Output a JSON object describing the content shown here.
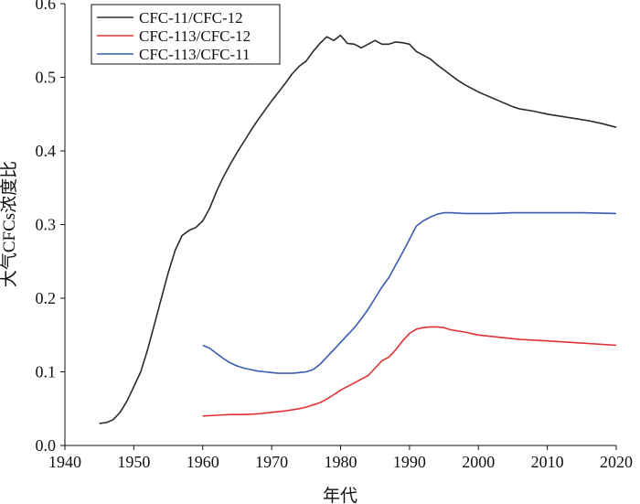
{
  "chart_data": {
    "type": "line",
    "title": "",
    "xlabel": "年代",
    "ylabel": "大气CFCs浓度比",
    "xlim": [
      1940,
      2020
    ],
    "ylim": [
      0,
      0.6
    ],
    "xticks": [
      1940,
      1950,
      1960,
      1970,
      1980,
      1990,
      2000,
      2010,
      2020
    ],
    "yticks": [
      0.0,
      0.1,
      0.2,
      0.3,
      0.4,
      0.5,
      0.6
    ],
    "xtick_labels": [
      "1940",
      "1950",
      "1960",
      "1970",
      "1980",
      "1990",
      "2000",
      "2010",
      "2020"
    ],
    "ytick_labels": [
      "0.0",
      "0.1",
      "0.2",
      "0.3",
      "0.4",
      "0.5",
      "0.6"
    ],
    "grid": false,
    "legend_position": "top-left",
    "series": [
      {
        "name": "CFC-11/CFC-12",
        "color": "#2b2b2b",
        "points": [
          [
            1945,
            0.03
          ],
          [
            1946,
            0.031
          ],
          [
            1947,
            0.035
          ],
          [
            1948,
            0.045
          ],
          [
            1949,
            0.06
          ],
          [
            1950,
            0.08
          ],
          [
            1951,
            0.1
          ],
          [
            1952,
            0.13
          ],
          [
            1953,
            0.165
          ],
          [
            1954,
            0.2
          ],
          [
            1955,
            0.235
          ],
          [
            1956,
            0.265
          ],
          [
            1957,
            0.285
          ],
          [
            1958,
            0.292
          ],
          [
            1959,
            0.296
          ],
          [
            1960,
            0.305
          ],
          [
            1961,
            0.322
          ],
          [
            1962,
            0.345
          ],
          [
            1963,
            0.365
          ],
          [
            1964,
            0.382
          ],
          [
            1965,
            0.398
          ],
          [
            1966,
            0.413
          ],
          [
            1967,
            0.428
          ],
          [
            1968,
            0.442
          ],
          [
            1969,
            0.455
          ],
          [
            1970,
            0.468
          ],
          [
            1971,
            0.48
          ],
          [
            1972,
            0.492
          ],
          [
            1973,
            0.505
          ],
          [
            1974,
            0.515
          ],
          [
            1975,
            0.522
          ],
          [
            1976,
            0.535
          ],
          [
            1977,
            0.546
          ],
          [
            1978,
            0.555
          ],
          [
            1979,
            0.55
          ],
          [
            1980,
            0.557
          ],
          [
            1981,
            0.546
          ],
          [
            1982,
            0.545
          ],
          [
            1983,
            0.54
          ],
          [
            1984,
            0.545
          ],
          [
            1985,
            0.55
          ],
          [
            1986,
            0.545
          ],
          [
            1987,
            0.545
          ],
          [
            1988,
            0.548
          ],
          [
            1989,
            0.547
          ],
          [
            1990,
            0.545
          ],
          [
            1991,
            0.535
          ],
          [
            1992,
            0.53
          ],
          [
            1993,
            0.525
          ],
          [
            1994,
            0.517
          ],
          [
            1995,
            0.51
          ],
          [
            1996,
            0.503
          ],
          [
            1997,
            0.496
          ],
          [
            1998,
            0.49
          ],
          [
            1999,
            0.485
          ],
          [
            2000,
            0.48
          ],
          [
            2001,
            0.476
          ],
          [
            2002,
            0.472
          ],
          [
            2003,
            0.468
          ],
          [
            2004,
            0.464
          ],
          [
            2005,
            0.46
          ],
          [
            2006,
            0.457
          ],
          [
            2008,
            0.454
          ],
          [
            2010,
            0.45
          ],
          [
            2012,
            0.447
          ],
          [
            2014,
            0.444
          ],
          [
            2016,
            0.441
          ],
          [
            2018,
            0.437
          ],
          [
            2020,
            0.432
          ]
        ]
      },
      {
        "name": "CFC-113/CFC-12",
        "color": "#e03434",
        "points": [
          [
            1960,
            0.04
          ],
          [
            1962,
            0.041
          ],
          [
            1964,
            0.042
          ],
          [
            1966,
            0.042
          ],
          [
            1968,
            0.043
          ],
          [
            1970,
            0.045
          ],
          [
            1972,
            0.047
          ],
          [
            1974,
            0.05
          ],
          [
            1975,
            0.052
          ],
          [
            1976,
            0.055
          ],
          [
            1977,
            0.058
          ],
          [
            1978,
            0.063
          ],
          [
            1979,
            0.069
          ],
          [
            1980,
            0.075
          ],
          [
            1981,
            0.08
          ],
          [
            1982,
            0.085
          ],
          [
            1983,
            0.09
          ],
          [
            1984,
            0.095
          ],
          [
            1985,
            0.105
          ],
          [
            1986,
            0.115
          ],
          [
            1987,
            0.12
          ],
          [
            1988,
            0.13
          ],
          [
            1989,
            0.142
          ],
          [
            1990,
            0.152
          ],
          [
            1991,
            0.158
          ],
          [
            1992,
            0.16
          ],
          [
            1993,
            0.161
          ],
          [
            1994,
            0.161
          ],
          [
            1995,
            0.16
          ],
          [
            1996,
            0.157
          ],
          [
            1998,
            0.154
          ],
          [
            2000,
            0.15
          ],
          [
            2003,
            0.147
          ],
          [
            2006,
            0.144
          ],
          [
            2010,
            0.142
          ],
          [
            2015,
            0.139
          ],
          [
            2020,
            0.136
          ]
        ]
      },
      {
        "name": "CFC-113/CFC-11",
        "color": "#3a5bb0",
        "points": [
          [
            1960,
            0.136
          ],
          [
            1961,
            0.132
          ],
          [
            1962,
            0.125
          ],
          [
            1963,
            0.118
          ],
          [
            1964,
            0.112
          ],
          [
            1965,
            0.108
          ],
          [
            1966,
            0.105
          ],
          [
            1967,
            0.103
          ],
          [
            1968,
            0.101
          ],
          [
            1969,
            0.1
          ],
          [
            1970,
            0.099
          ],
          [
            1971,
            0.098
          ],
          [
            1972,
            0.098
          ],
          [
            1973,
            0.098
          ],
          [
            1974,
            0.099
          ],
          [
            1975,
            0.1
          ],
          [
            1976,
            0.103
          ],
          [
            1977,
            0.11
          ],
          [
            1978,
            0.12
          ],
          [
            1979,
            0.13
          ],
          [
            1980,
            0.14
          ],
          [
            1981,
            0.15
          ],
          [
            1982,
            0.16
          ],
          [
            1983,
            0.172
          ],
          [
            1984,
            0.185
          ],
          [
            1985,
            0.2
          ],
          [
            1986,
            0.215
          ],
          [
            1987,
            0.228
          ],
          [
            1988,
            0.245
          ],
          [
            1989,
            0.262
          ],
          [
            1990,
            0.28
          ],
          [
            1991,
            0.298
          ],
          [
            1992,
            0.305
          ],
          [
            1993,
            0.31
          ],
          [
            1994,
            0.314
          ],
          [
            1995,
            0.316
          ],
          [
            1996,
            0.316
          ],
          [
            1998,
            0.315
          ],
          [
            2000,
            0.315
          ],
          [
            2002,
            0.315
          ],
          [
            2005,
            0.316
          ],
          [
            2010,
            0.316
          ],
          [
            2015,
            0.316
          ],
          [
            2020,
            0.315
          ]
        ]
      }
    ]
  }
}
